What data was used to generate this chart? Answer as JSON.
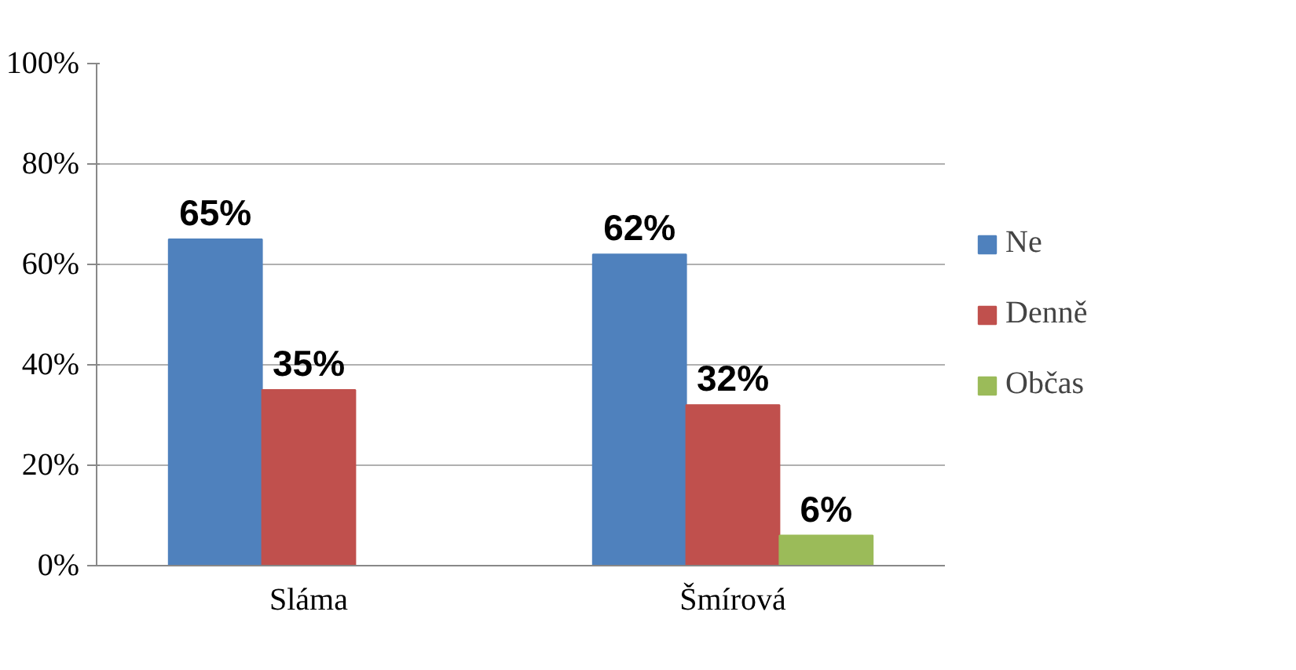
{
  "chart_data": {
    "type": "bar",
    "categories": [
      "Sláma",
      "Šmírová"
    ],
    "series": [
      {
        "name": "Ne",
        "color": "#4f81bd",
        "values": [
          65,
          62
        ],
        "value_labels": [
          "65%",
          "62%"
        ]
      },
      {
        "name": "Denně",
        "color": "#c0504d",
        "values": [
          35,
          32
        ],
        "value_labels": [
          "35%",
          "32%"
        ]
      },
      {
        "name": "Občas",
        "color": "#9bbb59",
        "values": [
          null,
          6
        ],
        "value_labels": [
          null,
          "6%"
        ]
      }
    ],
    "ylim": [
      0,
      100
    ],
    "yticks": [
      {
        "value": 0,
        "label": "0%"
      },
      {
        "value": 20,
        "label": "20%"
      },
      {
        "value": 40,
        "label": "40%"
      },
      {
        "value": 60,
        "label": "60%"
      },
      {
        "value": 80,
        "label": "80%"
      },
      {
        "value": 100,
        "label": "100%"
      }
    ],
    "grid": "y",
    "legend": "right"
  }
}
